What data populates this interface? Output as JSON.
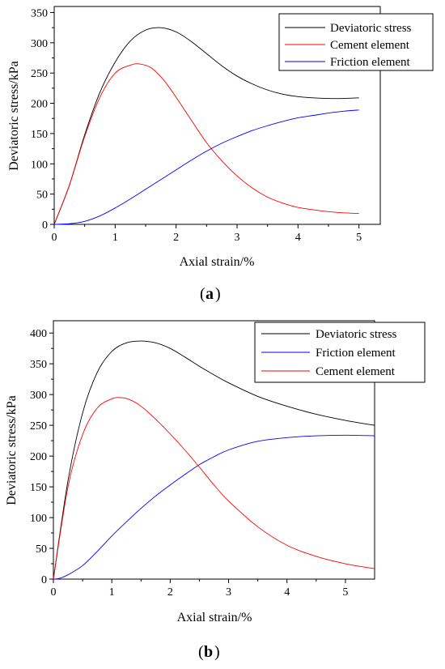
{
  "chart_data": [
    {
      "type": "line",
      "panel_label": "a",
      "xlabel": "Axial strain/%",
      "ylabel": "Deviatoric stress/kPa",
      "xlim": [
        0,
        5.35
      ],
      "ylim": [
        0,
        360
      ],
      "xticks": [
        0,
        1,
        2,
        3,
        4,
        5
      ],
      "yticks": [
        0,
        50,
        100,
        150,
        200,
        250,
        300,
        350
      ],
      "legend_position": "top-right",
      "grid": false,
      "series": [
        {
          "name": "Deviatoric stress",
          "color": "#000000",
          "x": [
            0,
            0.25,
            0.5,
            0.75,
            1.0,
            1.25,
            1.5,
            1.75,
            2.0,
            2.25,
            2.5,
            2.75,
            3.0,
            3.25,
            3.5,
            3.75,
            4.0,
            4.25,
            4.5,
            4.75,
            5.0
          ],
          "y": [
            0,
            65,
            148,
            218,
            268,
            303,
            321,
            325,
            318,
            302,
            282,
            262,
            245,
            232,
            222,
            215,
            211,
            209,
            208,
            208,
            209
          ]
        },
        {
          "name": "Cement element",
          "color": "#ff0000",
          "x": [
            0,
            0.25,
            0.5,
            0.75,
            1.0,
            1.25,
            1.4,
            1.6,
            1.8,
            2.0,
            2.25,
            2.5,
            2.75,
            3.0,
            3.25,
            3.5,
            3.75,
            4.0,
            4.25,
            4.5,
            4.75,
            5.0
          ],
          "y": [
            0,
            65,
            145,
            210,
            250,
            263,
            265,
            258,
            238,
            210,
            172,
            135,
            105,
            80,
            60,
            45,
            35,
            28,
            24,
            21,
            19,
            18
          ]
        },
        {
          "name": "Friction element",
          "color": "#0000ff",
          "x": [
            0,
            0.25,
            0.5,
            0.75,
            1.0,
            1.25,
            1.5,
            1.75,
            2.0,
            2.25,
            2.5,
            2.75,
            3.0,
            3.25,
            3.5,
            3.75,
            4.0,
            4.25,
            4.5,
            4.75,
            5.0
          ],
          "y": [
            0,
            1,
            5,
            14,
            27,
            42,
            58,
            74,
            90,
            106,
            121,
            134,
            145,
            155,
            163,
            170,
            176,
            180,
            184,
            187,
            189
          ]
        }
      ]
    },
    {
      "type": "line",
      "panel_label": "b",
      "xlabel": "Axial strain/%",
      "ylabel": "Deviatoric stress/kPa",
      "xlim": [
        0,
        5.5
      ],
      "ylim": [
        0,
        420
      ],
      "xticks": [
        0,
        1,
        2,
        3,
        4,
        5
      ],
      "yticks": [
        0,
        50,
        100,
        150,
        200,
        250,
        300,
        350,
        400
      ],
      "legend_position": "top-right",
      "grid": false,
      "series": [
        {
          "name": "Deviatoric stress",
          "color": "#000000",
          "x": [
            0,
            0.25,
            0.5,
            0.75,
            1.0,
            1.25,
            1.5,
            1.75,
            2.0,
            2.25,
            2.5,
            2.75,
            3.0,
            3.5,
            4.0,
            4.5,
            5.0,
            5.5
          ],
          "y": [
            0,
            160,
            270,
            336,
            370,
            384,
            387,
            384,
            375,
            361,
            346,
            332,
            319,
            297,
            281,
            268,
            258,
            250
          ]
        },
        {
          "name": "Friction element",
          "color": "#0000ff",
          "x": [
            0,
            0.1,
            0.25,
            0.5,
            0.75,
            1.0,
            1.25,
            1.5,
            1.75,
            2.0,
            2.25,
            2.5,
            2.75,
            3.0,
            3.5,
            4.0,
            4.5,
            5.0,
            5.5
          ],
          "y": [
            0,
            1,
            7,
            22,
            45,
            70,
            93,
            115,
            135,
            153,
            170,
            186,
            199,
            210,
            224,
            230,
            233,
            234,
            233
          ]
        },
        {
          "name": "Cement element",
          "color": "#ff0000",
          "x": [
            0,
            0.25,
            0.5,
            0.75,
            1.0,
            1.15,
            1.3,
            1.5,
            1.75,
            2.0,
            2.25,
            2.5,
            2.75,
            3.0,
            3.5,
            4.0,
            4.5,
            5.0,
            5.5
          ],
          "y": [
            0,
            150,
            235,
            278,
            293,
            295,
            292,
            281,
            260,
            236,
            210,
            182,
            153,
            127,
            85,
            55,
            37,
            25,
            17
          ]
        }
      ]
    }
  ]
}
